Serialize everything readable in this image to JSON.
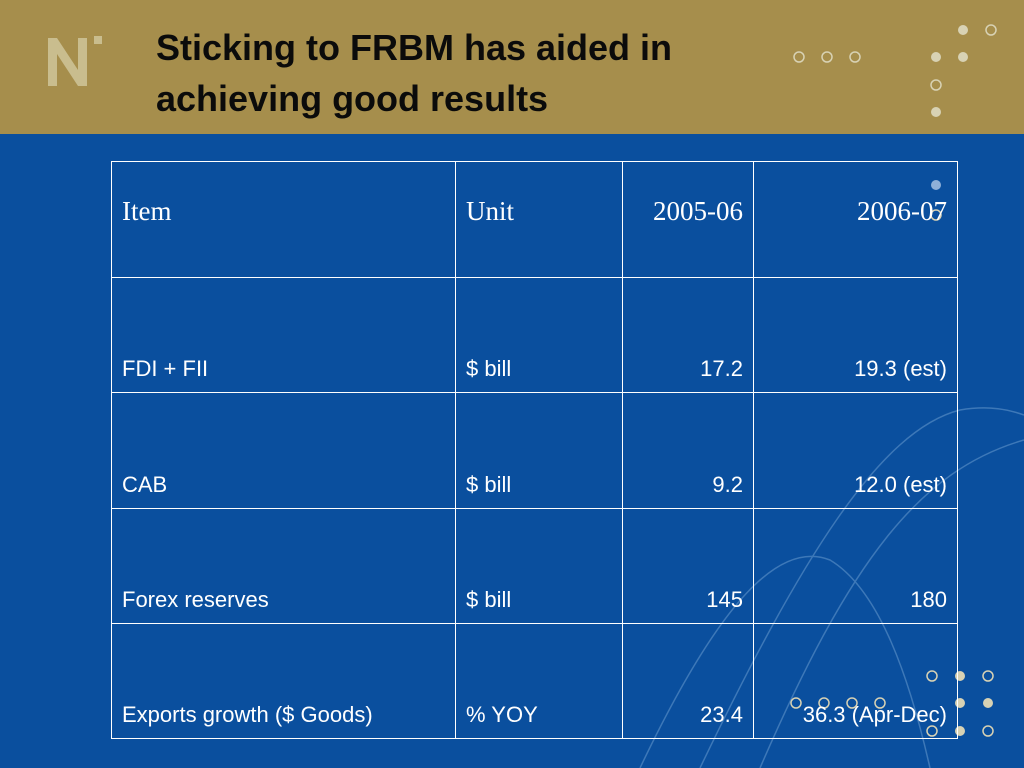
{
  "slide": {
    "title": "Sticking to FRBM has aided in\nachieving good results",
    "logo_icon": "n-logo-icon",
    "colors": {
      "background": "#0a4f9e",
      "header_band": "#a68e4c",
      "title": "#0b0b0b",
      "table_text": "#ffffff",
      "decor": "#d8d2b4"
    }
  },
  "table": {
    "headers": [
      "Item",
      "Unit",
      "2005-06",
      "2006-07"
    ],
    "rows": [
      {
        "item": "FDI + FII",
        "unit": "$ bill",
        "y2005_06": "17.2",
        "y2006_07": "19.3 (est)"
      },
      {
        "item": "CAB",
        "unit": "$ bill",
        "y2005_06": "9.2",
        "y2006_07": "12.0 (est)"
      },
      {
        "item": "Forex reserves",
        "unit": "$ bill",
        "y2005_06": "145",
        "y2006_07": "180"
      },
      {
        "item": "Exports growth ($ Goods)",
        "unit": "% YOY",
        "y2005_06": "23.4",
        "y2006_07": "36.3 (Apr-Dec)"
      }
    ]
  }
}
